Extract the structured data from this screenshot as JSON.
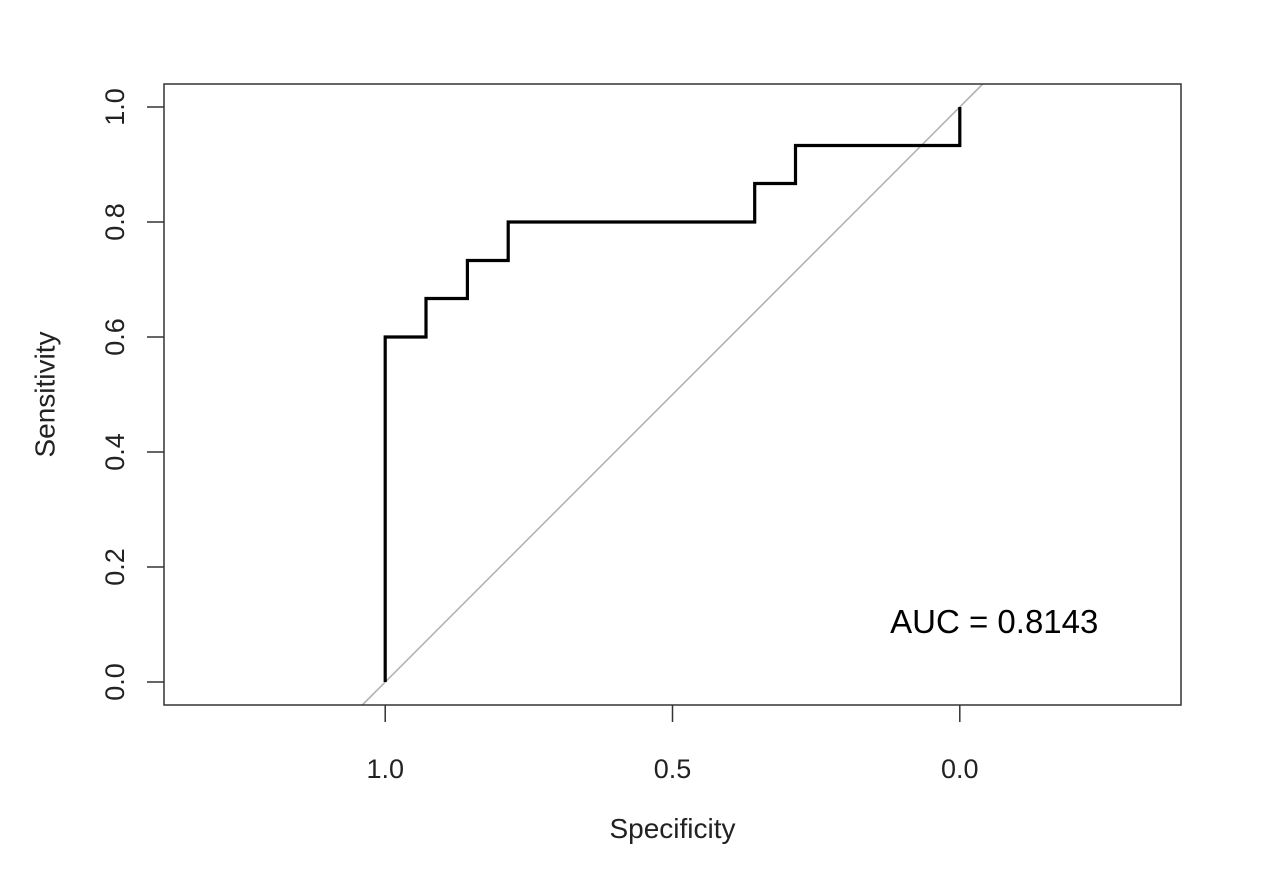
{
  "chart_data": {
    "type": "line",
    "xlabel": "Specificity",
    "ylabel": "Sensitivity",
    "x_reversed": true,
    "xlim": [
      1.385,
      -0.385
    ],
    "ylim": [
      -0.04,
      1.04
    ],
    "grid": false,
    "x_ticks": [
      {
        "value": 1.0,
        "label": "1.0"
      },
      {
        "value": 0.5,
        "label": "0.5"
      },
      {
        "value": 0.0,
        "label": "0.0"
      }
    ],
    "y_ticks": [
      {
        "value": 0.0,
        "label": "0.0"
      },
      {
        "value": 0.2,
        "label": "0.2"
      },
      {
        "value": 0.4,
        "label": "0.4"
      },
      {
        "value": 0.6,
        "label": "0.6"
      },
      {
        "value": 0.8,
        "label": "0.8"
      },
      {
        "value": 1.0,
        "label": "1.0"
      }
    ],
    "series": [
      {
        "x": [
          1.0,
          1.0,
          0.929,
          0.929,
          0.857,
          0.857,
          0.786,
          0.786,
          0.357,
          0.357,
          0.286,
          0.286,
          0.0,
          0.0
        ],
        "y": [
          0.0,
          0.6,
          0.6,
          0.667,
          0.667,
          0.733,
          0.733,
          0.8,
          0.8,
          0.867,
          0.867,
          0.933,
          0.933,
          1.0
        ],
        "color": "#000000"
      }
    ],
    "reference_line": {
      "x": [
        1.04,
        -0.04
      ],
      "y": [
        -0.04,
        1.04
      ],
      "color": "#b3b3b3"
    },
    "annotations": [
      {
        "text": "AUC = 0.8143",
        "x": -0.06,
        "y": 0.105
      }
    ]
  }
}
